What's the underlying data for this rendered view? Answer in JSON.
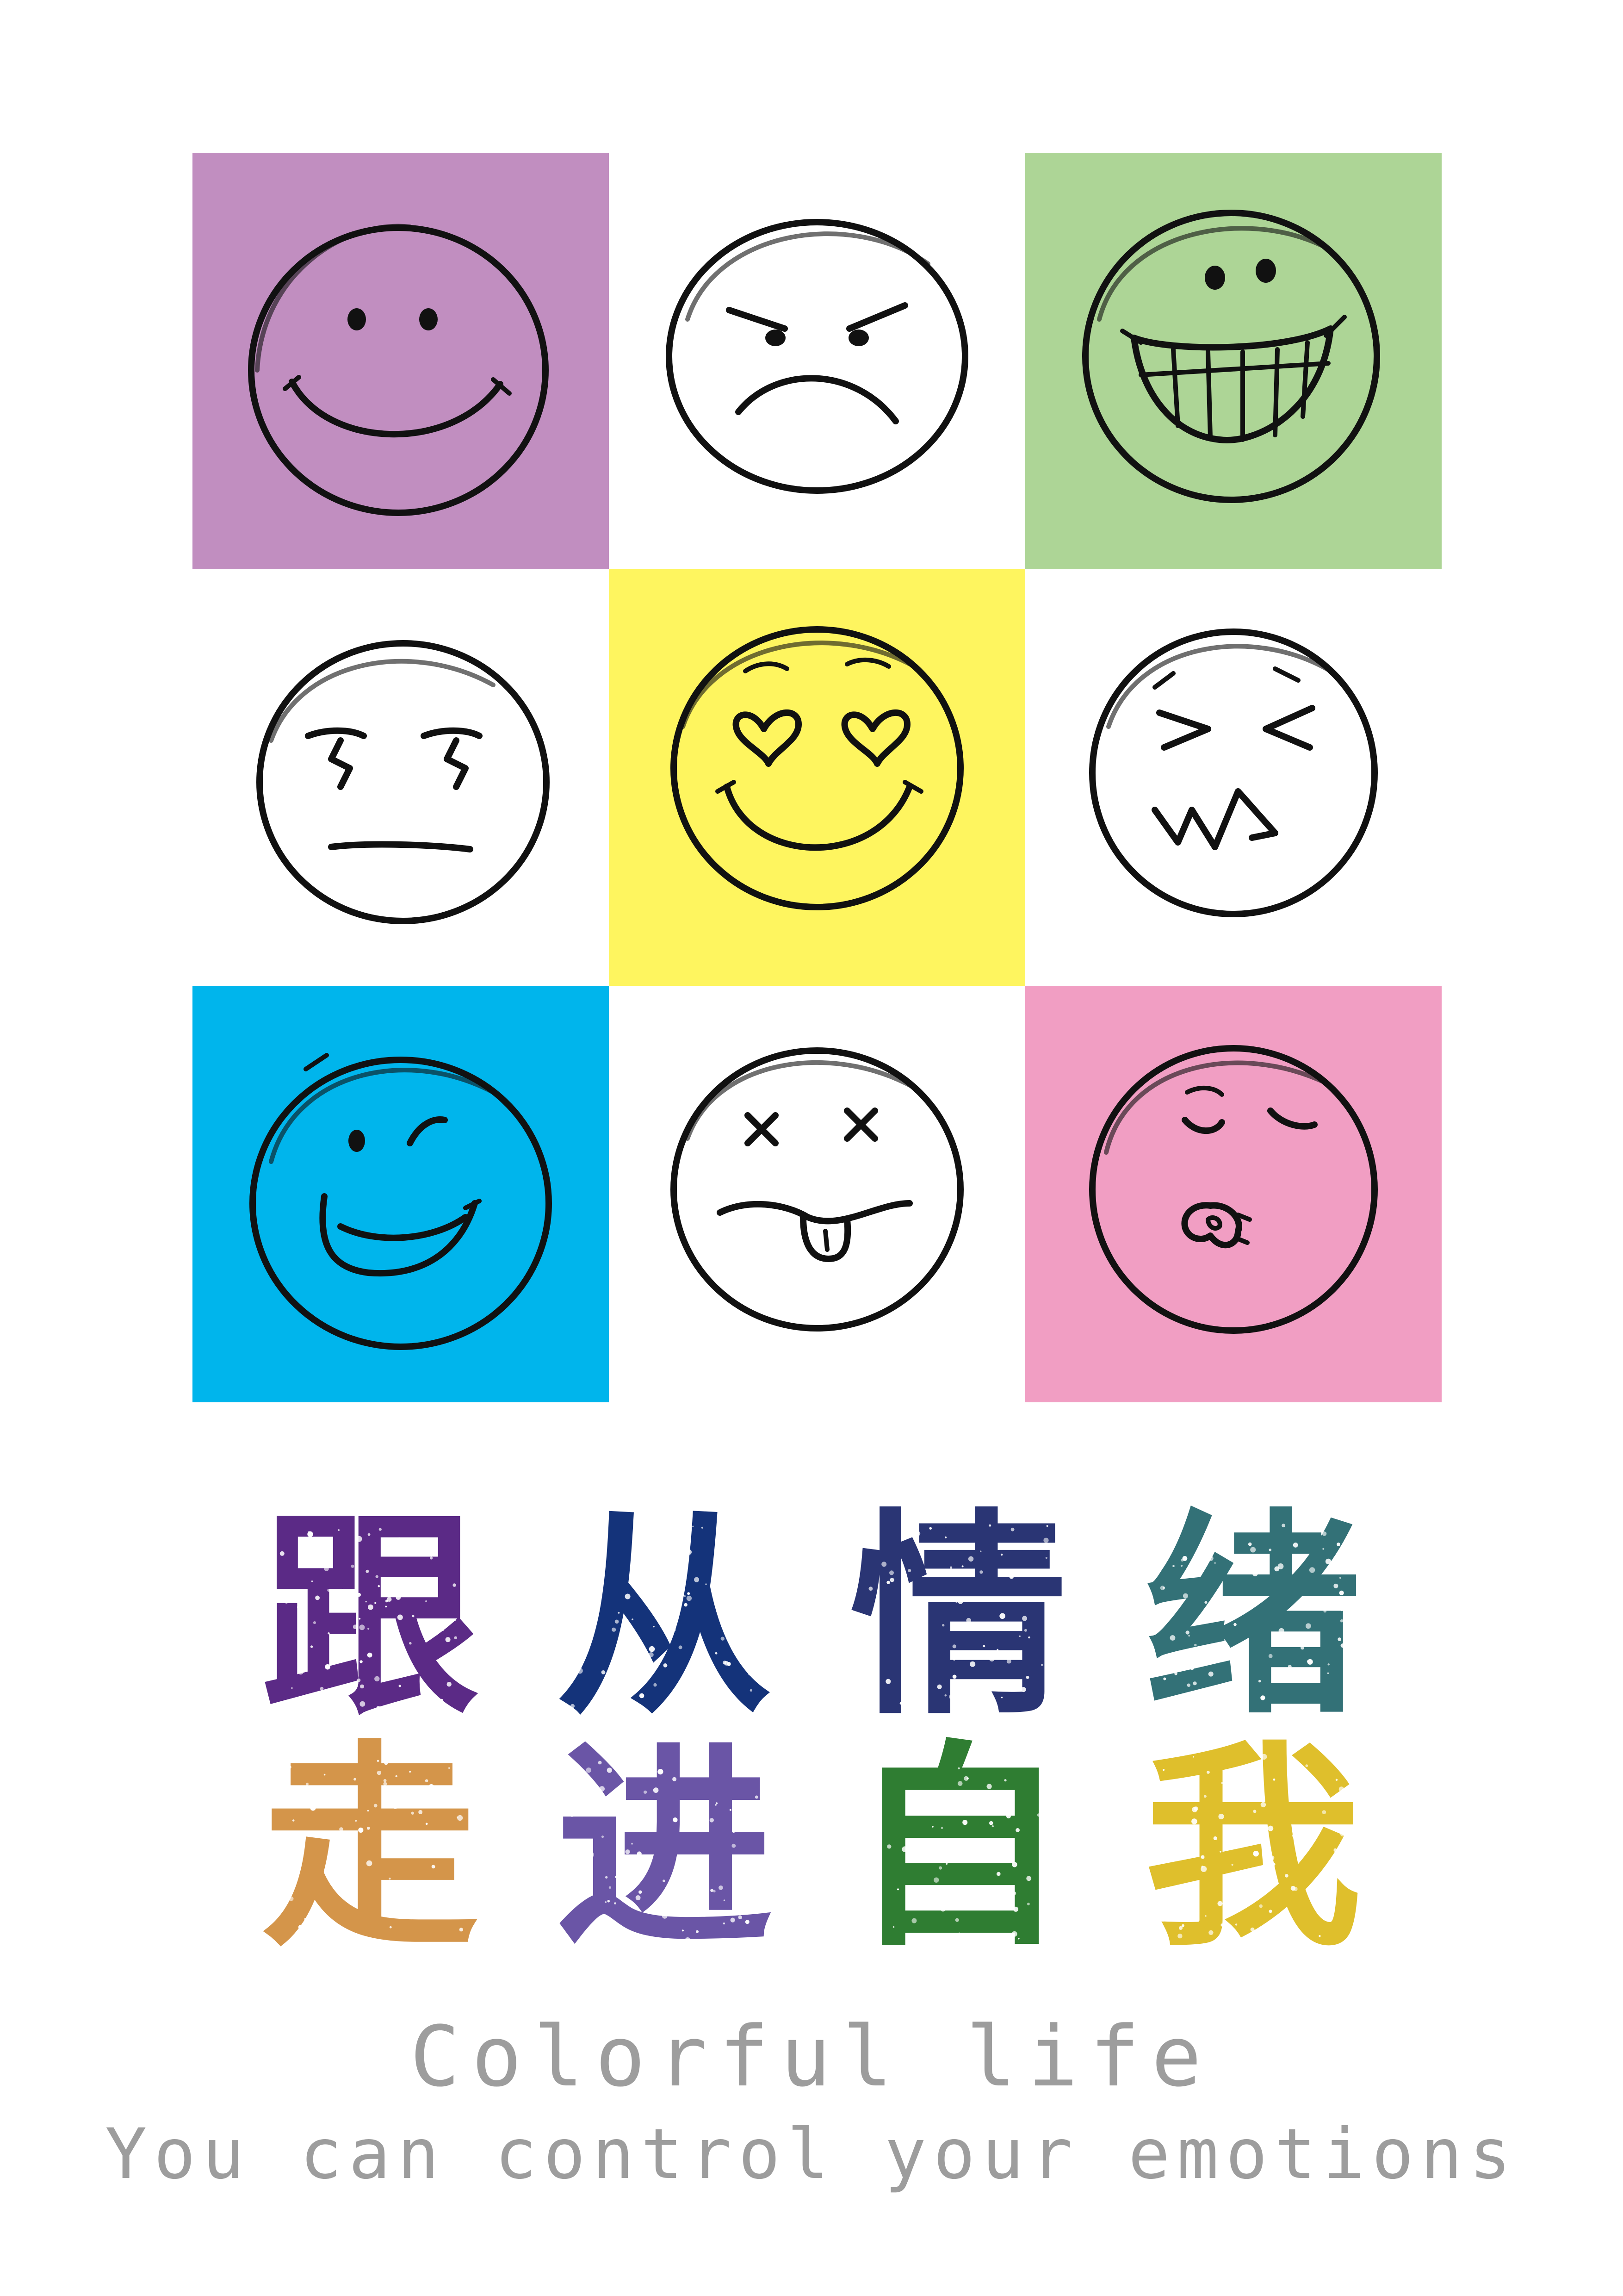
{
  "colors": {
    "purple": "#c18ec0",
    "green": "#add596",
    "yellow": "#fef55f",
    "blue": "#00b5ec",
    "pink": "#f19ec3",
    "white": "#ffffff"
  },
  "grid": [
    {
      "mood": "smile",
      "icon": "smiling-face-icon",
      "color": "#c18ec0"
    },
    {
      "mood": "angry",
      "icon": "angry-face-icon",
      "color": "#ffffff"
    },
    {
      "mood": "grin",
      "icon": "grinning-face-icon",
      "color": "#add596"
    },
    {
      "mood": "annoyed",
      "icon": "annoyed-face-icon",
      "color": "#ffffff"
    },
    {
      "mood": "love",
      "icon": "heart-eyes-face-icon",
      "color": "#fef55f"
    },
    {
      "mood": "scream",
      "icon": "squinting-face-icon",
      "color": "#ffffff"
    },
    {
      "mood": "wink",
      "icon": "winking-face-icon",
      "color": "#00b5ec"
    },
    {
      "mood": "dizzy",
      "icon": "dizzy-tongue-face-icon",
      "color": "#ffffff"
    },
    {
      "mood": "kiss",
      "icon": "kissing-face-icon",
      "color": "#f19ec3"
    }
  ],
  "title": {
    "line1": [
      {
        "char": "跟",
        "color": "#5b2a86"
      },
      {
        "char": "从",
        "color": "#14337a"
      },
      {
        "char": "情",
        "color": "#2a3574"
      },
      {
        "char": "绪",
        "color": "#337177"
      }
    ],
    "line2": [
      {
        "char": "走",
        "color": "#d4954a"
      },
      {
        "char": "进",
        "color": "#6a55a6"
      },
      {
        "char": "自",
        "color": "#2f7d32"
      },
      {
        "char": "我",
        "color": "#dfbf2c"
      }
    ]
  },
  "subtitle": {
    "line1": "Colorful life",
    "line2": "You can control your emotions"
  }
}
